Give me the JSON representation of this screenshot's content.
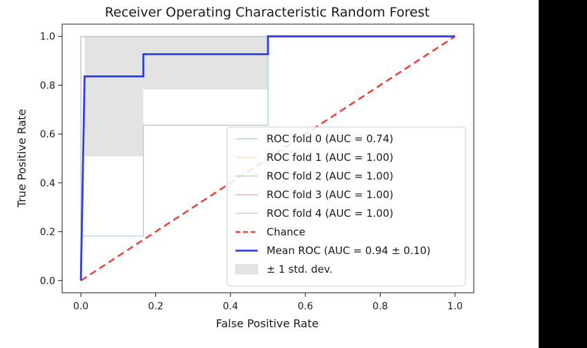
{
  "chart_data": {
    "type": "line",
    "title": "Receiver Operating Characteristic Random Forest",
    "xlabel": "False Positive Rate",
    "ylabel": "True Positive Rate",
    "xlim": [
      -0.05,
      1.05
    ],
    "ylim": [
      -0.05,
      1.05
    ],
    "xticks": [
      0.0,
      0.2,
      0.4,
      0.6,
      0.8,
      1.0
    ],
    "xtick_labels": [
      "0.0",
      "0.2",
      "0.4",
      "0.6",
      "0.8",
      "1.0"
    ],
    "yticks": [
      0.0,
      0.2,
      0.4,
      0.6,
      0.8,
      1.0
    ],
    "ytick_labels": [
      "0.0",
      "0.2",
      "0.4",
      "0.6",
      "0.8",
      "1.0"
    ],
    "grid": false,
    "legend_position": "lower-right",
    "series": [
      {
        "name": "ROC fold 0 (AUC = 0.74)",
        "color": "#9ecae1",
        "x": [
          0.0,
          0.0,
          0.167,
          0.167,
          0.5,
          0.5,
          1.0
        ],
        "y": [
          0.0,
          0.182,
          0.182,
          0.636,
          0.636,
          1.0,
          1.0
        ]
      },
      {
        "name": "ROC fold 1 (AUC = 1.00)",
        "color": "#fdd9a8",
        "x": [
          0.0,
          0.0,
          1.0
        ],
        "y": [
          0.0,
          1.0,
          1.0
        ]
      },
      {
        "name": "ROC fold 2 (AUC = 1.00)",
        "color": "#a9d7a0",
        "x": [
          0.0,
          0.0,
          1.0
        ],
        "y": [
          0.0,
          1.0,
          1.0
        ]
      },
      {
        "name": "ROC fold 3 (AUC = 1.00)",
        "color": "#e8a3a3",
        "x": [
          0.0,
          0.0,
          1.0
        ],
        "y": [
          0.0,
          1.0,
          1.0
        ]
      },
      {
        "name": "ROC fold 4 (AUC = 1.00)",
        "color": "#c9bfe0",
        "x": [
          0.0,
          0.0,
          1.0
        ],
        "y": [
          0.0,
          1.0,
          1.0
        ]
      }
    ],
    "chance": {
      "name": "Chance",
      "color": "#e8453c",
      "x": [
        0.0,
        1.0
      ],
      "y": [
        0.0,
        1.0
      ]
    },
    "mean": {
      "name": "Mean ROC (AUC = 0.94 ± 0.10)",
      "color": "#2b3de8",
      "x": [
        0.0,
        0.01,
        0.01,
        0.167,
        0.167,
        0.5,
        0.5,
        1.0
      ],
      "y": [
        0.0,
        0.836,
        0.836,
        0.836,
        0.927,
        0.927,
        1.0,
        1.0
      ]
    },
    "std_band": {
      "name": "± 1 std. dev.",
      "color": "#e3e3e3",
      "x": [
        0.01,
        0.167,
        0.167,
        0.5,
        0.5
      ],
      "upper": [
        1.0,
        1.0,
        1.0,
        1.0,
        1.0
      ],
      "lower": [
        0.509,
        0.509,
        0.782,
        0.782,
        1.0
      ]
    }
  }
}
